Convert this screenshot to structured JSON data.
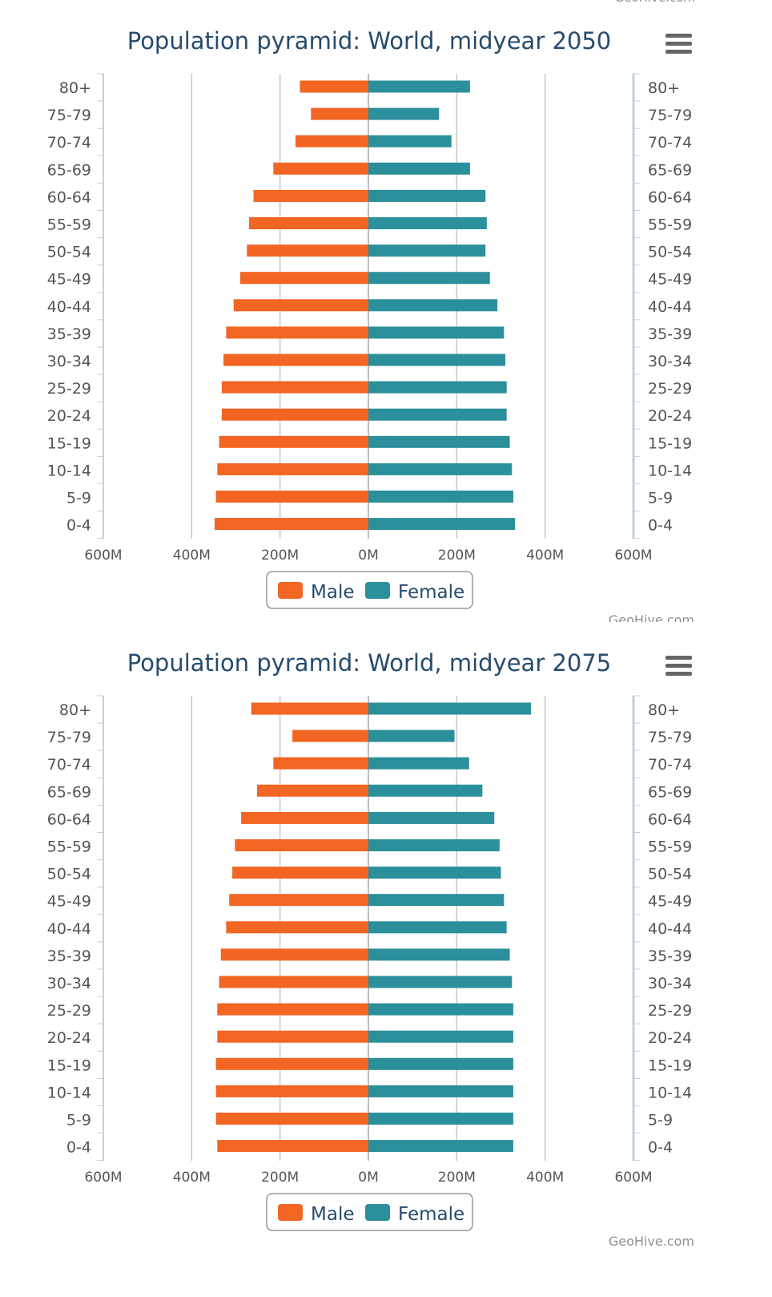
{
  "credits": "GeoHive.com",
  "chart_data": [
    {
      "type": "bar",
      "orientation": "horizontal",
      "title": "Population pyramid: World, midyear 2050",
      "categories": [
        "80+",
        "75-79",
        "70-74",
        "65-69",
        "60-64",
        "55-59",
        "50-54",
        "45-49",
        "40-44",
        "35-39",
        "30-34",
        "25-29",
        "20-24",
        "15-19",
        "10-14",
        "5-9",
        "0-4"
      ],
      "series": [
        {
          "name": "Male",
          "color": "#f26522",
          "values": [
            155,
            130,
            165,
            215,
            260,
            270,
            275,
            290,
            305,
            322,
            328,
            332,
            332,
            338,
            342,
            345,
            348
          ]
        },
        {
          "name": "Female",
          "color": "#2b8f9c",
          "values": [
            230,
            160,
            188,
            230,
            265,
            268,
            265,
            275,
            292,
            307,
            310,
            313,
            313,
            320,
            325,
            328,
            332
          ]
        }
      ],
      "x_ticks": [
        "600M",
        "400M",
        "200M",
        "0M",
        "200M",
        "400M",
        "600M"
      ],
      "xlim": [
        -600,
        600
      ],
      "units": "millions",
      "legend_placement": "bottom-center"
    },
    {
      "type": "bar",
      "orientation": "horizontal",
      "title": "Population pyramid: World, midyear 2075",
      "categories": [
        "80+",
        "75-79",
        "70-74",
        "65-69",
        "60-64",
        "55-59",
        "50-54",
        "45-49",
        "40-44",
        "35-39",
        "30-34",
        "25-29",
        "20-24",
        "15-19",
        "10-14",
        "5-9",
        "0-4"
      ],
      "series": [
        {
          "name": "Male",
          "color": "#f26522",
          "values": [
            265,
            172,
            215,
            252,
            288,
            302,
            308,
            315,
            322,
            334,
            338,
            342,
            342,
            345,
            345,
            345,
            342
          ]
        },
        {
          "name": "Female",
          "color": "#2b8f9c",
          "values": [
            368,
            195,
            228,
            258,
            285,
            297,
            300,
            307,
            313,
            320,
            325,
            328,
            328,
            328,
            328,
            328,
            328
          ]
        }
      ],
      "x_ticks": [
        "600M",
        "400M",
        "200M",
        "0M",
        "200M",
        "400M",
        "600M"
      ],
      "xlim": [
        -600,
        600
      ],
      "units": "millions",
      "legend_placement": "bottom-center"
    }
  ]
}
